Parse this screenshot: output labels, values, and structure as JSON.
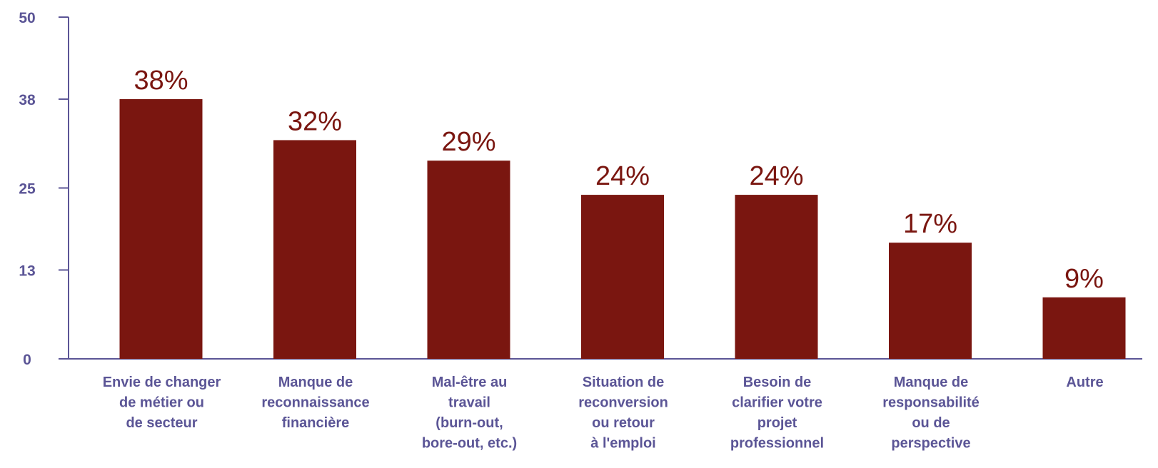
{
  "chart_data": {
    "type": "bar",
    "categories": [
      [
        "Envie de changer",
        "de métier ou",
        "de secteur"
      ],
      [
        "Manque de",
        "reconnaissance",
        "financière"
      ],
      [
        "Mal-être au",
        "travail",
        "(burn-out,",
        "bore-out, etc.)"
      ],
      [
        "Situation de",
        "reconversion",
        "ou retour",
        "à l'emploi"
      ],
      [
        "Besoin de",
        "clarifier votre",
        "projet",
        "professionnel"
      ],
      [
        "Manque de",
        "responsabilité",
        "ou de",
        "perspective"
      ],
      [
        "Autre"
      ]
    ],
    "values": [
      38,
      32,
      29,
      24,
      24,
      17,
      9
    ],
    "data_labels": [
      "38%",
      "32%",
      "29%",
      "24%",
      "24%",
      "17%",
      "9%"
    ],
    "y_ticks": [
      0,
      13,
      25,
      38,
      50
    ],
    "y_tick_labels": [
      "0",
      "13",
      "25",
      "38",
      "50"
    ],
    "ylim": [
      0,
      50
    ],
    "grid": false,
    "colors": {
      "bar": "#7a1610",
      "axis": "#5b5596",
      "label": "#5b5596",
      "data_label": "#7a1610"
    }
  }
}
